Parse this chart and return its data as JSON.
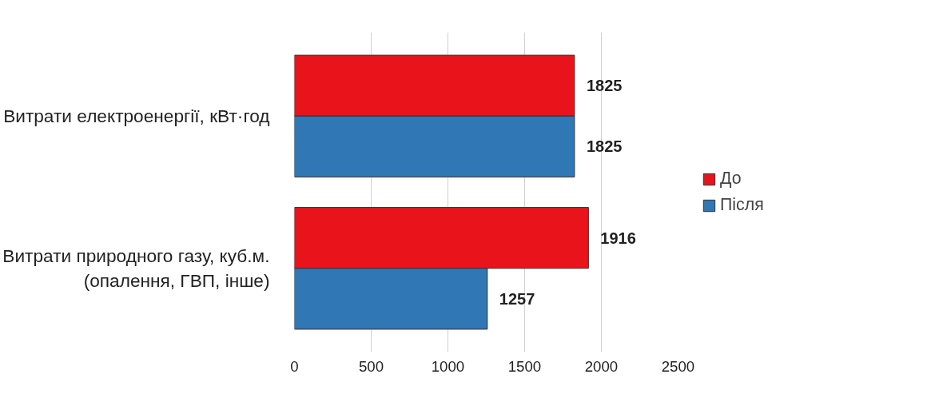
{
  "chart_data": {
    "type": "bar",
    "orientation": "horizontal",
    "categories": [
      "Витрати електроенергії, кВт·год",
      "Витрати природного газу, куб.м.\n(опалення, ГВП, інше)"
    ],
    "series": [
      {
        "name": "До",
        "color": "#e8131b",
        "values": [
          1825,
          1916
        ]
      },
      {
        "name": "Після",
        "color": "#2f77b5",
        "values": [
          1825,
          1257
        ]
      }
    ],
    "xlim": [
      0,
      2500
    ],
    "xticks": [
      0,
      500,
      1000,
      1500,
      2000,
      2500
    ],
    "grid": "x",
    "legend": "right",
    "data_labels": true
  }
}
